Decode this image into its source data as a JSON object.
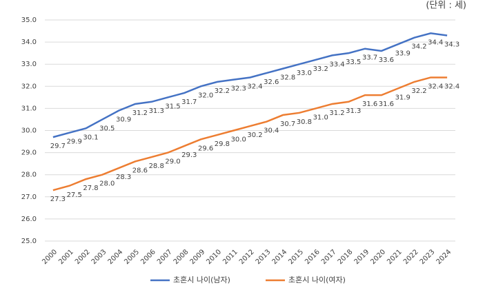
{
  "chart_data": {
    "type": "line",
    "unit_note": "(단위 : 세)",
    "categories": [
      "2000",
      "2001",
      "2002",
      "2003",
      "2004",
      "2005",
      "2006",
      "2007",
      "2008",
      "2009",
      "2010",
      "2011",
      "2012",
      "2013",
      "2014",
      "2015",
      "2016",
      "2017",
      "2018",
      "2019",
      "2020",
      "2021",
      "2022",
      "2023",
      "2024"
    ],
    "series": [
      {
        "name": "초혼시 나이(남자)",
        "color": "#4472c4",
        "values": [
          29.7,
          29.9,
          30.1,
          30.5,
          30.9,
          31.2,
          31.3,
          31.5,
          31.7,
          32.0,
          32.2,
          32.3,
          32.4,
          32.6,
          32.8,
          33.0,
          33.2,
          33.4,
          33.5,
          33.7,
          33.6,
          33.9,
          34.2,
          34.4,
          34.3
        ],
        "value_labels": [
          "29.7",
          "29.9",
          "30.1",
          "30.5",
          "30.9",
          "31.2",
          "31.3",
          "31.5",
          "31.7",
          "32.0",
          "32.2",
          "32.3",
          "32.4",
          "32.6",
          "32.8",
          "33.0",
          "33.2",
          "33.4",
          "33.5",
          "33.7",
          "33.6",
          "33.9",
          "34.2",
          "34.4",
          "34.3"
        ]
      },
      {
        "name": "초혼시 나이(여자)",
        "color": "#ed7d31",
        "values": [
          27.3,
          27.5,
          27.8,
          28.0,
          28.3,
          28.6,
          28.8,
          29.0,
          29.3,
          29.6,
          29.8,
          30.0,
          30.2,
          30.4,
          30.7,
          30.8,
          31.0,
          31.2,
          31.3,
          31.6,
          31.6,
          31.9,
          32.2,
          32.4,
          32.4
        ],
        "value_labels": [
          "27.3",
          "27.5",
          "27.8",
          "28.0",
          "28.3",
          "28.6",
          "28.8",
          "29.0",
          "29.3",
          "29.6",
          "29.8",
          "30.0",
          "30.2",
          "30.4",
          "30.7",
          "30.8",
          "31.0",
          "31.2",
          "31.3",
          "31.6",
          "31.6",
          "31.9",
          "32.2",
          "32.4",
          "32.4"
        ]
      }
    ],
    "ylim": [
      25,
      35
    ],
    "yticks": [
      {
        "value": 25,
        "label": "25.0"
      },
      {
        "value": 26,
        "label": "26.0"
      },
      {
        "value": 27,
        "label": "27.0"
      },
      {
        "value": 28,
        "label": "28.0"
      },
      {
        "value": 29,
        "label": "29.0"
      },
      {
        "value": 30,
        "label": "30.0"
      },
      {
        "value": 31,
        "label": "31.0"
      },
      {
        "value": 32,
        "label": "32.0"
      },
      {
        "value": 33,
        "label": "33.0"
      },
      {
        "value": 34,
        "label": "34.0"
      },
      {
        "value": 35,
        "label": "35.0"
      }
    ],
    "grid": true,
    "legend": "bottom"
  }
}
